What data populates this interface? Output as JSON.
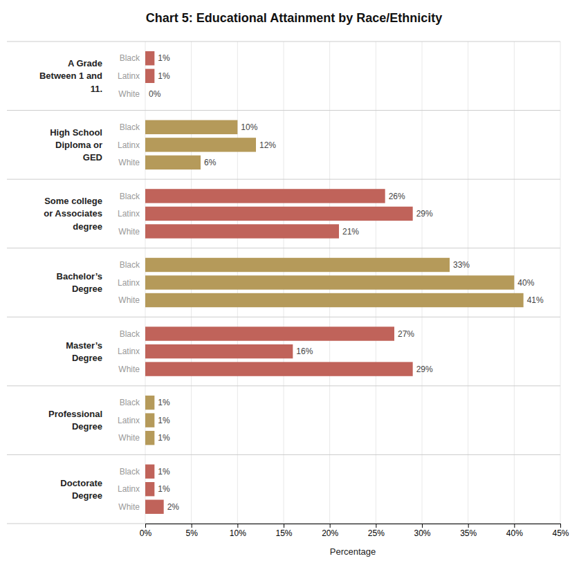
{
  "chart_data": {
    "type": "bar",
    "orientation": "horizontal",
    "title": "Chart 5: Educational Attainment by Race/Ethnicity",
    "xlabel": "Percentage",
    "categories": [
      "A Grade\nBetween 1 and\n11.",
      "High School\nDiploma or\nGED",
      "Some college\nor Associates\ndegree",
      "Bachelor’s\nDegree",
      "Master’s\nDegree",
      "Professional\nDegree",
      "Doctorate\nDegree"
    ],
    "series": [
      {
        "name": "Black",
        "values": [
          1,
          10,
          26,
          33,
          27,
          1,
          1
        ],
        "value_labels": [
          "1%",
          "10%",
          "26%",
          "33%",
          "27%",
          "1%",
          "1%"
        ],
        "colors": [
          "#c0635a",
          "#b59a5a",
          "#c0635a",
          "#b59a5a",
          "#c0635a",
          "#b59a5a",
          "#c0635a"
        ]
      },
      {
        "name": "Latinx",
        "values": [
          1,
          12,
          29,
          40,
          16,
          1,
          1
        ],
        "value_labels": [
          "1%",
          "12%",
          "29%",
          "40%",
          "16%",
          "1%",
          "1%"
        ],
        "colors": [
          "#c0635a",
          "#b59a5a",
          "#c0635a",
          "#b59a5a",
          "#c0635a",
          "#b59a5a",
          "#c0635a"
        ]
      },
      {
        "name": "White",
        "values": [
          0,
          6,
          21,
          41,
          29,
          1,
          2
        ],
        "value_labels": [
          "0%",
          "6%",
          "21%",
          "41%",
          "29%",
          "1%",
          "2%"
        ],
        "colors": [
          "#c0635a",
          "#b59a5a",
          "#c0635a",
          "#b59a5a",
          "#c0635a",
          "#b59a5a",
          "#c0635a"
        ]
      }
    ],
    "xlim": [
      0,
      45
    ],
    "xticks": [
      {
        "value": 0,
        "label": "0%"
      },
      {
        "value": 5,
        "label": "5%"
      },
      {
        "value": 10,
        "label": "10%"
      },
      {
        "value": 15,
        "label": "15%"
      },
      {
        "value": 20,
        "label": "20%"
      },
      {
        "value": 25,
        "label": "25%"
      },
      {
        "value": 30,
        "label": "30%"
      },
      {
        "value": 35,
        "label": "35%"
      },
      {
        "value": 40,
        "label": "40%"
      },
      {
        "value": 45,
        "label": "45%"
      }
    ],
    "grid": true,
    "data_labels": true
  }
}
